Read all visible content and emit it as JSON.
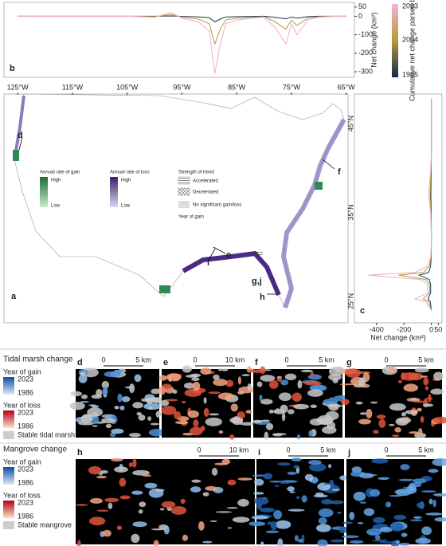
{
  "panel_b": {
    "type": "line",
    "label": "b",
    "ylabel": "Net change (km²)",
    "ylim": [
      -330,
      75
    ],
    "yticks": [
      50,
      0,
      -100,
      -200,
      -300
    ],
    "xlim": [
      -127.5,
      -63.5
    ],
    "x": [
      -125,
      -120,
      -115,
      -110,
      -105,
      -100,
      -97,
      -95,
      -92,
      -90,
      -89,
      -88,
      -87,
      -85,
      -82,
      -80,
      -78,
      -76,
      -75,
      -74,
      -72,
      -70,
      -67,
      -65
    ],
    "series": [
      {
        "name": 1985,
        "color": "#1b3553",
        "values": [
          0,
          0,
          0,
          0,
          0,
          0,
          2,
          -1,
          -3,
          -8,
          -30,
          -15,
          -4,
          -2,
          -1,
          0,
          -6,
          -14,
          -4,
          -10,
          -2,
          0,
          0,
          0
        ]
      },
      {
        "name": 2004,
        "color": "#b39a3c",
        "values": [
          0,
          0,
          0,
          0,
          0,
          -2,
          10,
          -5,
          -15,
          -40,
          -150,
          -70,
          -20,
          -10,
          -5,
          -2,
          -30,
          -70,
          -20,
          -50,
          -10,
          -2,
          0,
          0
        ]
      },
      {
        "name": 2023,
        "color": "#f3a9cb",
        "values": [
          0,
          0,
          0,
          0,
          0,
          -5,
          20,
          -10,
          -30,
          -80,
          -310,
          -150,
          -40,
          -20,
          -10,
          -5,
          -60,
          -150,
          -40,
          -100,
          -20,
          -5,
          0,
          0
        ]
      }
    ],
    "colorbar_title": "Cumulative net change parsed by year"
  },
  "map": {
    "label": "a",
    "lon_ticks": [
      {
        "value": -125,
        "label": "125°W"
      },
      {
        "value": -115,
        "label": "115°W"
      },
      {
        "value": -105,
        "label": "105°W"
      },
      {
        "value": -95,
        "label": "95°W"
      },
      {
        "value": -85,
        "label": "85°W"
      },
      {
        "value": -75,
        "label": "75°W"
      },
      {
        "value": -65,
        "label": "65°W"
      }
    ],
    "lat_ticks": [
      {
        "value": 45,
        "label": "45°N"
      },
      {
        "value": 35,
        "label": "35°N"
      },
      {
        "value": 25,
        "label": "25°N"
      }
    ],
    "legend": {
      "gain_title": "Annual rate of gain",
      "gain_high": "High",
      "gain_low": "Low",
      "loss_title": "Annual rate of loss",
      "loss_high": "High",
      "loss_low": "Low",
      "trend_title": "Strength of trend",
      "accelerated": "Accelerated",
      "decelerated": "Decelerated",
      "no_change": "No significant gain/loss",
      "year_of_gain": "Year of gain"
    },
    "callouts": [
      "d",
      "f",
      "e",
      "i",
      "g,j",
      "h"
    ]
  },
  "panel_c": {
    "type": "line",
    "label": "c",
    "xlabel": "Net change (km²)",
    "xlim": [
      -480,
      60
    ],
    "xticks": [
      -400,
      -200,
      0,
      50
    ],
    "ylim": [
      22.6,
      48.5
    ],
    "y": [
      48,
      45,
      42,
      40,
      37,
      35,
      32,
      30,
      29,
      28.3,
      28,
      27.5,
      27,
      26,
      25.3,
      25,
      24.5,
      24
    ],
    "series": [
      {
        "name": 1985,
        "color": "#1b3553",
        "values": [
          0,
          0,
          0,
          -1,
          -4,
          -1,
          0,
          -1,
          -6,
          -20,
          -90,
          -15,
          -6,
          -5,
          -25,
          -8,
          -4,
          0
        ]
      },
      {
        "name": 2004,
        "color": "#b39a3c",
        "values": [
          0,
          0,
          0,
          -3,
          -10,
          -3,
          0,
          -3,
          -15,
          -60,
          -240,
          -40,
          -15,
          -12,
          -60,
          -20,
          -10,
          0
        ]
      },
      {
        "name": 2023,
        "color": "#f3a9cb",
        "values": [
          0,
          0,
          0,
          -5,
          -20,
          -5,
          0,
          -5,
          -30,
          -120,
          -460,
          -80,
          -30,
          -25,
          -120,
          -40,
          -20,
          0
        ]
      }
    ]
  },
  "tidal_marsh": {
    "title": "Tidal marsh change",
    "gain": "Year of gain",
    "gain_max": 2023,
    "gain_min": 1986,
    "loss": "Year of loss",
    "loss_max": 2023,
    "loss_min": 1986,
    "stable": "Stable tidal marsh",
    "panels": [
      {
        "label": "d",
        "scale": [
          0,
          "5 km"
        ]
      },
      {
        "label": "e",
        "scale": [
          0,
          "10 km"
        ]
      },
      {
        "label": "f",
        "scale": [
          0,
          "5 km"
        ]
      },
      {
        "label": "g",
        "scale": [
          0,
          "5 km"
        ]
      }
    ]
  },
  "mangrove": {
    "title": "Mangrove change",
    "gain": "Year of gain",
    "gain_max": 2023,
    "gain_min": 1986,
    "loss": "Year of loss",
    "loss_max": 2023,
    "loss_min": 1986,
    "stable": "Stable mangrove",
    "panels": [
      {
        "label": "h",
        "scale": [
          0,
          "10 km"
        ]
      },
      {
        "label": "i",
        "scale": [
          0,
          "5 km"
        ]
      },
      {
        "label": "j",
        "scale": [
          0,
          "5 km"
        ]
      }
    ]
  }
}
